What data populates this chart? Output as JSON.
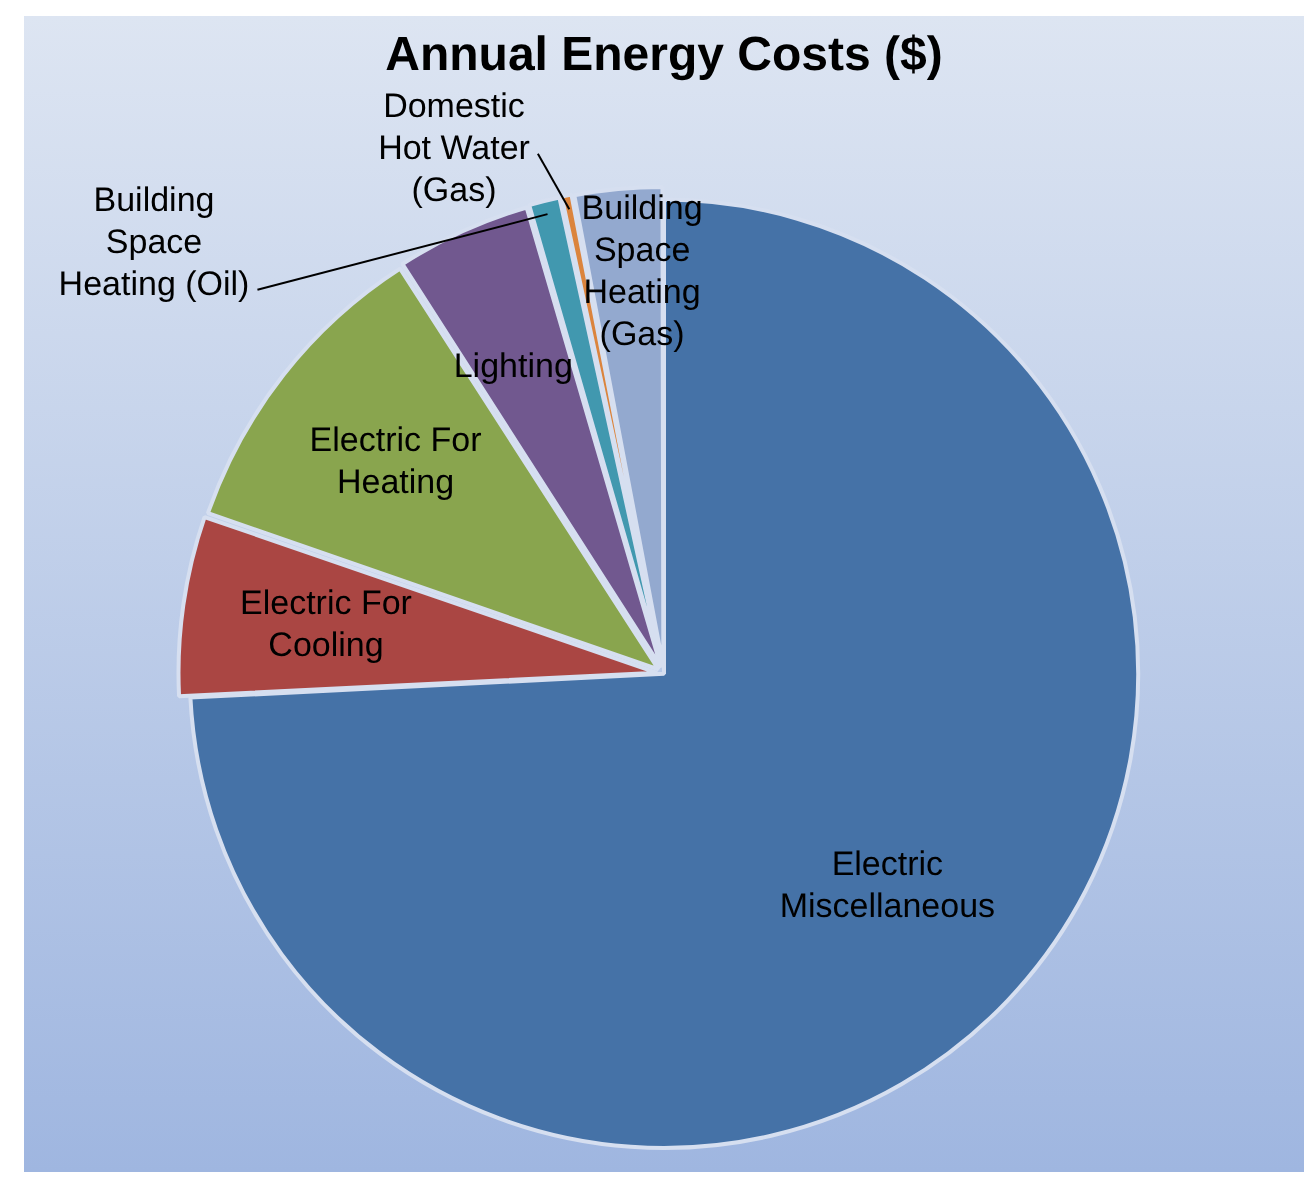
{
  "chart_data": {
    "type": "pie",
    "title": "Annual Energy Costs ($)",
    "categories": [
      "Electric Miscellaneous",
      "Electric For Cooling",
      "Electric For Heating",
      "Lighting",
      "Building Space Heating (Oil)",
      "Domestic Hot Water (Gas)",
      "Building Space Heating (Gas)"
    ],
    "values": [
      74.2,
      6.1,
      10.6,
      4.6,
      1.1,
      0.4,
      3.0
    ],
    "colors": [
      "#4572a7",
      "#aa4643",
      "#89a54e",
      "#71588f",
      "#4198af",
      "#db843d",
      "#93a9cf"
    ],
    "legend": false
  }
}
